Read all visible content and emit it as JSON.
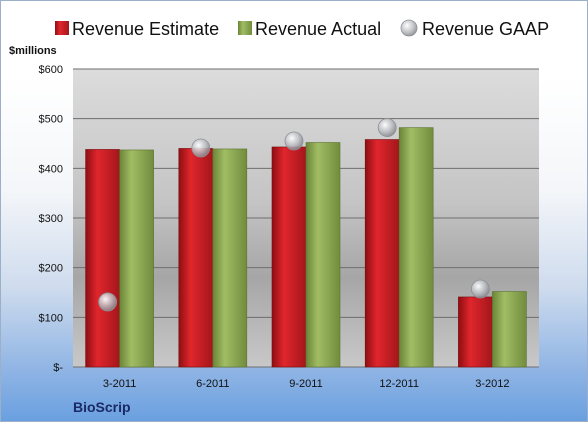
{
  "company": "BioScrip",
  "colors": {
    "estimate": "#cc1f26",
    "actual": "#8fac55",
    "gaap": "#b8bcc2",
    "accent": "#1a2a66"
  },
  "chart_data": {
    "type": "bar",
    "title": "",
    "ylabel": "$millions",
    "xlabel": "",
    "categories": [
      "3-2011",
      "6-2011",
      "9-2011",
      "12-2011",
      "3-2012"
    ],
    "series": [
      {
        "name": "Revenue Estimate",
        "kind": "bar",
        "values": [
          438,
          440,
          443,
          458,
          141
        ]
      },
      {
        "name": "Revenue Actual",
        "kind": "bar",
        "values": [
          437,
          439,
          452,
          482,
          152
        ]
      },
      {
        "name": "Revenue GAAP",
        "kind": "marker",
        "values": [
          131,
          441,
          455,
          482,
          157
        ]
      }
    ],
    "ylim": [
      0,
      600
    ],
    "yticks": [
      0,
      100,
      200,
      300,
      400,
      500,
      600
    ],
    "ytick_labels": [
      "$-",
      "$100",
      "$200",
      "$300",
      "$400",
      "$500",
      "$600"
    ],
    "grid": true,
    "legend_position": "top"
  }
}
